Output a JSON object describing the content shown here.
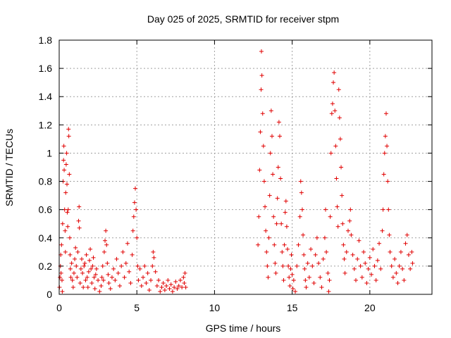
{
  "chart_data": {
    "type": "scatter",
    "title": "Day 025 of 2025, SRMTID for receiver stpm",
    "xlabel": "GPS time / hours",
    "ylabel": "SRMTID / TECUs",
    "xlim": [
      0,
      24
    ],
    "ylim": [
      0,
      1.8
    ],
    "xticks": [
      0,
      5,
      10,
      15,
      20
    ],
    "yticks": [
      0,
      0.2,
      0.4,
      0.6,
      0.8,
      1.0,
      1.2,
      1.4,
      1.6,
      1.8
    ],
    "xtick_labels": [
      "0",
      "5",
      "10",
      "15",
      "20"
    ],
    "ytick_labels": [
      "0",
      "0.2",
      "0.4",
      "0.6",
      "0.8",
      "1",
      "1.2",
      "1.4",
      "1.6",
      "1.8"
    ],
    "grid": true,
    "marker": "plus",
    "color": "#e00000",
    "series": [
      {
        "name": "SRMTID",
        "points": [
          [
            0.02,
            0.05
          ],
          [
            0.05,
            0.12
          ],
          [
            0.08,
            0.2
          ],
          [
            0.1,
            0.28
          ],
          [
            0.12,
            0.15
          ],
          [
            0.15,
            0.35
          ],
          [
            0.18,
            0.1
          ],
          [
            0.2,
            0.02
          ],
          [
            0.22,
            0.5
          ],
          [
            0.25,
            0.8
          ],
          [
            0.28,
            0.95
          ],
          [
            0.3,
            1.05
          ],
          [
            0.32,
            0.88
          ],
          [
            0.35,
            0.6
          ],
          [
            0.38,
            0.45
          ],
          [
            0.4,
            0.3
          ],
          [
            0.42,
            0.72
          ],
          [
            0.45,
            0.92
          ],
          [
            0.48,
            1.0
          ],
          [
            0.5,
            0.78
          ],
          [
            0.52,
            0.58
          ],
          [
            0.55,
            0.48
          ],
          [
            0.58,
            0.6
          ],
          [
            0.6,
            1.17
          ],
          [
            0.62,
            1.12
          ],
          [
            0.65,
            0.85
          ],
          [
            0.68,
            0.4
          ],
          [
            0.7,
            0.28
          ],
          [
            0.72,
            0.18
          ],
          [
            0.75,
            0.12
          ],
          [
            0.8,
            0.22
          ],
          [
            0.85,
            0.1
          ],
          [
            0.9,
            0.05
          ],
          [
            0.95,
            0.15
          ],
          [
            1.0,
            0.25
          ],
          [
            1.05,
            0.33
          ],
          [
            1.1,
            0.2
          ],
          [
            1.15,
            0.12
          ],
          [
            1.2,
            0.3
          ],
          [
            1.25,
            0.52
          ],
          [
            1.28,
            0.62
          ],
          [
            1.3,
            0.47
          ],
          [
            1.35,
            0.08
          ],
          [
            1.4,
            0.18
          ],
          [
            1.45,
            0.25
          ],
          [
            1.5,
            0.15
          ],
          [
            1.55,
            0.05
          ],
          [
            1.6,
            0.2
          ],
          [
            1.65,
            0.22
          ],
          [
            1.7,
            0.1
          ],
          [
            1.75,
            0.28
          ],
          [
            1.8,
            0.12
          ],
          [
            1.85,
            0.05
          ],
          [
            1.9,
            0.16
          ],
          [
            1.95,
            0.24
          ],
          [
            2.0,
            0.32
          ],
          [
            2.05,
            0.18
          ],
          [
            2.1,
            0.08
          ],
          [
            2.15,
            0.2
          ],
          [
            2.2,
            0.26
          ],
          [
            2.25,
            0.12
          ],
          [
            2.3,
            0.04
          ],
          [
            2.35,
            0.14
          ],
          [
            2.4,
            0.18
          ],
          [
            2.5,
            0.1
          ],
          [
            2.6,
            0.02
          ],
          [
            2.7,
            0.06
          ],
          [
            2.75,
            0.12
          ],
          [
            2.8,
            0.2
          ],
          [
            2.85,
            0.1
          ],
          [
            2.9,
            0.3
          ],
          [
            2.95,
            0.38
          ],
          [
            3.0,
            0.45
          ],
          [
            3.05,
            0.35
          ],
          [
            3.1,
            0.22
          ],
          [
            3.15,
            0.14
          ],
          [
            3.2,
            0.08
          ],
          [
            3.3,
            0.04
          ],
          [
            3.4,
            0.12
          ],
          [
            3.5,
            0.18
          ],
          [
            3.6,
            0.1
          ],
          [
            3.7,
            0.25
          ],
          [
            3.8,
            0.15
          ],
          [
            3.9,
            0.06
          ],
          [
            4.0,
            0.2
          ],
          [
            4.1,
            0.3
          ],
          [
            4.2,
            0.12
          ],
          [
            4.3,
            0.22
          ],
          [
            4.4,
            0.36
          ],
          [
            4.5,
            0.16
          ],
          [
            4.6,
            0.08
          ],
          [
            4.7,
            0.28
          ],
          [
            4.75,
            0.45
          ],
          [
            4.8,
            0.55
          ],
          [
            4.85,
            0.65
          ],
          [
            4.9,
            0.75
          ],
          [
            4.95,
            0.6
          ],
          [
            5.0,
            0.4
          ],
          [
            5.05,
            0.2
          ],
          [
            5.1,
            0.1
          ],
          [
            5.2,
            0.18
          ],
          [
            5.3,
            0.06
          ],
          [
            5.4,
            0.12
          ],
          [
            5.5,
            0.2
          ],
          [
            5.6,
            0.08
          ],
          [
            5.7,
            0.15
          ],
          [
            5.8,
            0.03
          ],
          [
            5.9,
            0.1
          ],
          [
            6.0,
            0.2
          ],
          [
            6.05,
            0.3
          ],
          [
            6.1,
            0.26
          ],
          [
            6.2,
            0.16
          ],
          [
            6.3,
            0.06
          ],
          [
            6.4,
            0.1
          ],
          [
            6.5,
            0.02
          ],
          [
            6.6,
            0.05
          ],
          [
            6.7,
            0.08
          ],
          [
            6.8,
            0.03
          ],
          [
            6.9,
            0.06
          ],
          [
            7.0,
            0.1
          ],
          [
            7.1,
            0.04
          ],
          [
            7.2,
            0.07
          ],
          [
            7.3,
            0.02
          ],
          [
            7.4,
            0.05
          ],
          [
            7.5,
            0.09
          ],
          [
            7.6,
            0.04
          ],
          [
            7.7,
            0.06
          ],
          [
            7.8,
            0.1
          ],
          [
            7.9,
            0.05
          ],
          [
            8.0,
            0.12
          ],
          [
            8.05,
            0.08
          ],
          [
            8.1,
            0.15
          ],
          [
            8.15,
            0.05
          ],
          [
            12.8,
            0.35
          ],
          [
            12.85,
            0.55
          ],
          [
            12.9,
            0.88
          ],
          [
            12.95,
            1.15
          ],
          [
            13.0,
            1.45
          ],
          [
            13.02,
            1.72
          ],
          [
            13.05,
            1.55
          ],
          [
            13.1,
            1.28
          ],
          [
            13.15,
            1.05
          ],
          [
            13.2,
            0.8
          ],
          [
            13.25,
            0.62
          ],
          [
            13.3,
            0.45
          ],
          [
            13.35,
            0.3
          ],
          [
            13.4,
            0.2
          ],
          [
            13.45,
            0.12
          ],
          [
            13.5,
            0.4
          ],
          [
            13.55,
            0.7
          ],
          [
            13.6,
            1.0
          ],
          [
            13.65,
            1.3
          ],
          [
            13.7,
            1.12
          ],
          [
            13.75,
            0.85
          ],
          [
            13.8,
            0.55
          ],
          [
            13.85,
            0.35
          ],
          [
            13.9,
            0.22
          ],
          [
            13.95,
            0.15
          ],
          [
            14.0,
            0.5
          ],
          [
            14.05,
            0.68
          ],
          [
            14.1,
            0.9
          ],
          [
            14.15,
            1.22
          ],
          [
            14.2,
            1.12
          ],
          [
            14.25,
            0.82
          ],
          [
            14.3,
            0.5
          ],
          [
            14.35,
            0.3
          ],
          [
            14.4,
            0.2
          ],
          [
            14.45,
            0.1
          ],
          [
            14.5,
            0.35
          ],
          [
            14.55,
            0.58
          ],
          [
            14.6,
            0.66
          ],
          [
            14.65,
            0.48
          ],
          [
            14.7,
            0.32
          ],
          [
            14.75,
            0.2
          ],
          [
            14.8,
            0.12
          ],
          [
            14.85,
            0.06
          ],
          [
            14.9,
            0.18
          ],
          [
            14.95,
            0.28
          ],
          [
            15.0,
            0.14
          ],
          [
            15.05,
            0.04
          ],
          [
            15.1,
            0.1
          ],
          [
            15.2,
            0.02
          ],
          [
            15.3,
            0.2
          ],
          [
            15.4,
            0.35
          ],
          [
            15.5,
            0.55
          ],
          [
            15.55,
            0.8
          ],
          [
            15.6,
            0.72
          ],
          [
            15.65,
            0.6
          ],
          [
            15.7,
            0.42
          ],
          [
            15.75,
            0.28
          ],
          [
            15.8,
            0.18
          ],
          [
            15.85,
            0.1
          ],
          [
            15.9,
            0.05
          ],
          [
            16.0,
            0.22
          ],
          [
            16.1,
            0.12
          ],
          [
            16.2,
            0.32
          ],
          [
            16.3,
            0.2
          ],
          [
            16.4,
            0.08
          ],
          [
            16.5,
            0.28
          ],
          [
            16.6,
            0.4
          ],
          [
            16.7,
            0.22
          ],
          [
            16.8,
            0.12
          ],
          [
            16.9,
            0.05
          ],
          [
            17.0,
            0.25
          ],
          [
            17.1,
            0.4
          ],
          [
            17.15,
            0.6
          ],
          [
            17.2,
            0.3
          ],
          [
            17.3,
            0.15
          ],
          [
            17.35,
            0.02
          ],
          [
            17.4,
            0.1
          ],
          [
            17.45,
            0.55
          ],
          [
            17.5,
            1.0
          ],
          [
            17.55,
            1.28
          ],
          [
            17.6,
            1.35
          ],
          [
            17.65,
            1.5
          ],
          [
            17.7,
            1.57
          ],
          [
            17.75,
            1.3
          ],
          [
            17.8,
            1.05
          ],
          [
            17.85,
            0.82
          ],
          [
            17.9,
            0.62
          ],
          [
            17.95,
            0.48
          ],
          [
            18.0,
            1.45
          ],
          [
            18.05,
            1.25
          ],
          [
            18.1,
            1.1
          ],
          [
            18.15,
            0.9
          ],
          [
            18.2,
            0.7
          ],
          [
            18.25,
            0.5
          ],
          [
            18.3,
            0.35
          ],
          [
            18.35,
            0.25
          ],
          [
            18.4,
            0.15
          ],
          [
            18.5,
            0.3
          ],
          [
            18.6,
            0.45
          ],
          [
            18.7,
            0.52
          ],
          [
            18.75,
            0.6
          ],
          [
            18.8,
            0.42
          ],
          [
            18.9,
            0.28
          ],
          [
            19.0,
            0.18
          ],
          [
            19.1,
            0.1
          ],
          [
            19.2,
            0.25
          ],
          [
            19.3,
            0.38
          ],
          [
            19.4,
            0.2
          ],
          [
            19.5,
            0.12
          ],
          [
            19.6,
            0.3
          ],
          [
            19.7,
            0.22
          ],
          [
            19.8,
            0.08
          ],
          [
            19.9,
            0.18
          ],
          [
            20.0,
            0.26
          ],
          [
            20.1,
            0.14
          ],
          [
            20.2,
            0.32
          ],
          [
            20.3,
            0.2
          ],
          [
            20.4,
            0.1
          ],
          [
            20.5,
            0.24
          ],
          [
            20.6,
            0.36
          ],
          [
            20.7,
            0.18
          ],
          [
            20.8,
            0.45
          ],
          [
            20.85,
            0.6
          ],
          [
            20.9,
            0.85
          ],
          [
            20.95,
            1.0
          ],
          [
            21.0,
            1.12
          ],
          [
            21.05,
            1.28
          ],
          [
            21.1,
            1.05
          ],
          [
            21.15,
            0.8
          ],
          [
            21.2,
            0.6
          ],
          [
            21.25,
            0.42
          ],
          [
            21.3,
            0.3
          ],
          [
            21.4,
            0.2
          ],
          [
            21.5,
            0.12
          ],
          [
            21.6,
            0.25
          ],
          [
            21.7,
            0.15
          ],
          [
            21.8,
            0.08
          ],
          [
            21.9,
            0.2
          ],
          [
            22.0,
            0.3
          ],
          [
            22.1,
            0.18
          ],
          [
            22.2,
            0.1
          ],
          [
            22.3,
            0.36
          ],
          [
            22.4,
            0.42
          ],
          [
            22.5,
            0.28
          ],
          [
            22.6,
            0.18
          ],
          [
            22.7,
            0.3
          ],
          [
            22.75,
            0.22
          ]
        ]
      }
    ]
  }
}
